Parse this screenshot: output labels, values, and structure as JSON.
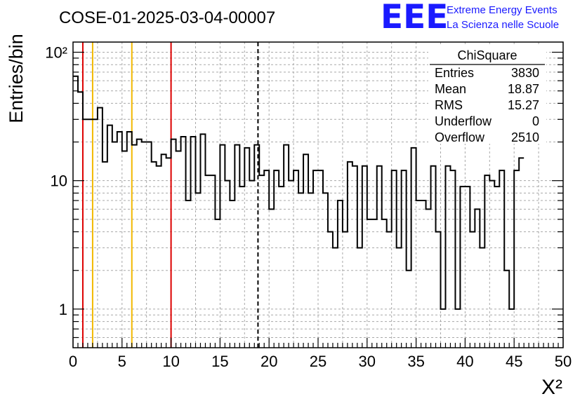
{
  "title": "COSE-01-2025-03-04-00007",
  "logo": {
    "text": "EEE",
    "line1": "Extreme Energy Events",
    "line2": "La Scienza nelle Scuole",
    "color": "#1a1aff"
  },
  "stats": {
    "title": "ChiSquare",
    "rows": [
      {
        "label": "Entries",
        "value": "3830"
      },
      {
        "label": "Mean",
        "value": "18.87"
      },
      {
        "label": "RMS",
        "value": "15.27"
      },
      {
        "label": "Underflow",
        "value": "0"
      },
      {
        "label": "Overflow",
        "value": "2510"
      }
    ]
  },
  "chart_data": {
    "type": "histogram",
    "xlabel": "X²",
    "ylabel": "Entries/bin",
    "xlim": [
      0,
      50
    ],
    "ylim": [
      0.5,
      120
    ],
    "yscale": "log",
    "grid": true,
    "bin_width": 0.5,
    "xticks": [
      "0",
      "5",
      "10",
      "15",
      "20",
      "25",
      "30",
      "35",
      "40",
      "45",
      "50"
    ],
    "yticks": [
      {
        "value": 1,
        "label": "1"
      },
      {
        "value": 10,
        "label": "10"
      },
      {
        "value": 100,
        "label": "10²"
      }
    ],
    "values": [
      65,
      49,
      30,
      30,
      30,
      37,
      14,
      27,
      20,
      24,
      17,
      24,
      19,
      21,
      20,
      20,
      14,
      13,
      16,
      15,
      21,
      17,
      22,
      7,
      22,
      8,
      23,
      11,
      11,
      5,
      19,
      10,
      7,
      19,
      9,
      18,
      10,
      19,
      11,
      12,
      6,
      12,
      9,
      19,
      10,
      12,
      8,
      16,
      8,
      12,
      12,
      8,
      4,
      3,
      7,
      4,
      14,
      13,
      3,
      13,
      5,
      5,
      13,
      5,
      4,
      12,
      3,
      12,
      2,
      18,
      7,
      7,
      6,
      13,
      4,
      1,
      13,
      12,
      1,
      9,
      9,
      4,
      6,
      3,
      11,
      10,
      9,
      12,
      2,
      1,
      12,
      15
    ],
    "vlines": [
      {
        "x": 1,
        "color": "#dd0000",
        "style": "solid"
      },
      {
        "x": 2,
        "color": "#f2b800",
        "style": "solid"
      },
      {
        "x": 6,
        "color": "#f2b800",
        "style": "solid"
      },
      {
        "x": 10,
        "color": "#dd0000",
        "style": "solid"
      },
      {
        "x": 18.87,
        "color": "#000000",
        "style": "dashed"
      }
    ]
  }
}
